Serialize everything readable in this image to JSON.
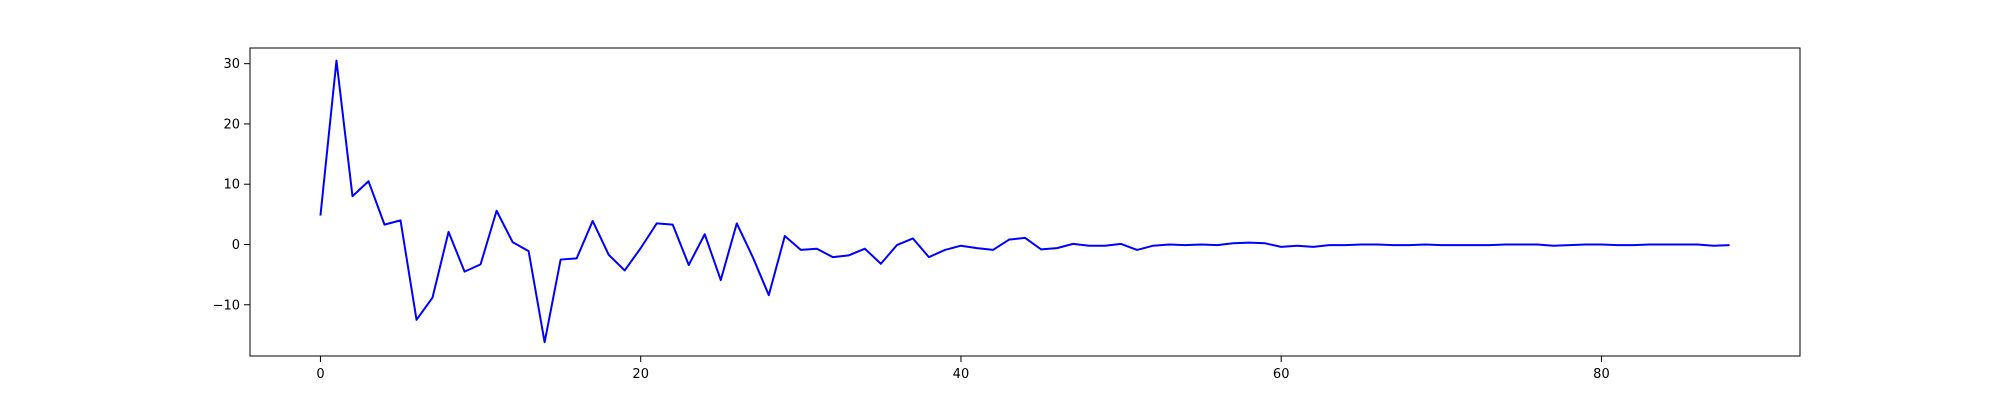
{
  "chart_data": {
    "type": "line",
    "title": "",
    "xlabel": "",
    "ylabel": "",
    "xlim": [
      -4.4,
      92.4
    ],
    "ylim": [
      -18.5,
      32.6
    ],
    "x_ticks": [
      0,
      20,
      40,
      60,
      80
    ],
    "y_ticks": [
      -10,
      0,
      10,
      20,
      30
    ],
    "grid": false,
    "legend": "none",
    "series": [
      {
        "color": "#0000ff",
        "x": [
          0,
          1,
          2,
          3,
          4,
          5,
          6,
          7,
          8,
          9,
          10,
          11,
          12,
          13,
          14,
          15,
          16,
          17,
          18,
          19,
          20,
          21,
          22,
          23,
          24,
          25,
          26,
          27,
          28,
          29,
          30,
          31,
          32,
          33,
          34,
          35,
          36,
          37,
          38,
          39,
          40,
          41,
          42,
          43,
          44,
          45,
          46,
          47,
          48,
          49,
          50,
          51,
          52,
          53,
          54,
          55,
          56,
          57,
          58,
          59,
          60,
          61,
          62,
          63,
          64,
          65,
          66,
          67,
          68,
          69,
          70,
          71,
          72,
          73,
          74,
          75,
          76,
          77,
          78,
          79,
          80,
          81,
          82,
          83,
          84,
          85,
          86,
          87,
          88
        ],
        "values": [
          4.8,
          30.5,
          8.0,
          10.5,
          3.3,
          4.0,
          -12.5,
          -8.8,
          2.1,
          -4.5,
          -3.3,
          5.6,
          0.4,
          -1.1,
          -16.2,
          -2.5,
          -2.3,
          3.9,
          -1.7,
          -4.3,
          -0.6,
          3.5,
          3.3,
          -3.4,
          1.7,
          -5.9,
          3.5,
          -2.1,
          -8.4,
          1.4,
          -0.9,
          -0.7,
          -2.1,
          -1.8,
          -0.7,
          -3.2,
          -0.1,
          1.0,
          -2.1,
          -0.9,
          -0.2,
          -0.6,
          -0.9,
          0.8,
          1.1,
          -0.8,
          -0.6,
          0.1,
          -0.2,
          -0.2,
          0.1,
          -0.9,
          -0.2,
          0.0,
          -0.1,
          0.0,
          -0.1,
          0.2,
          0.3,
          0.2,
          -0.4,
          -0.2,
          -0.4,
          -0.1,
          -0.1,
          0.0,
          0.0,
          -0.1,
          -0.1,
          0.0,
          -0.1,
          -0.1,
          -0.1,
          -0.1,
          0.0,
          0.0,
          0.0,
          -0.2,
          -0.1,
          0.0,
          0.0,
          -0.1,
          -0.1,
          0.0,
          0.0,
          0.0,
          0.0,
          -0.2,
          -0.1
        ]
      }
    ]
  }
}
